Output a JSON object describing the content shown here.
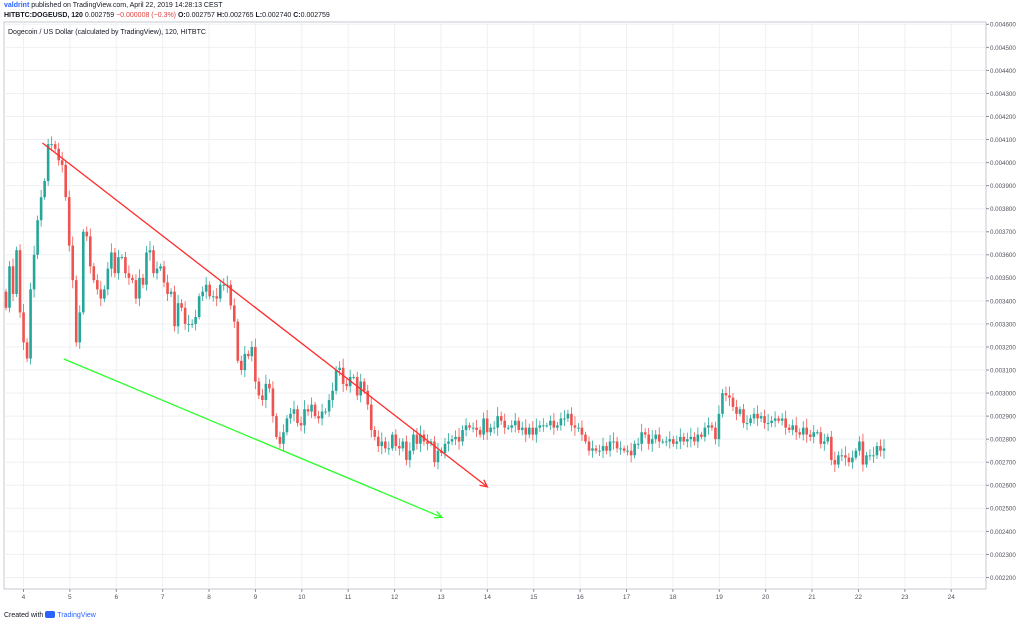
{
  "header": {
    "author": "valdrint",
    "published_text": "published on TradingView.com, April 22, 2019 14:28:13 CEST",
    "symbol": "HITBTC:DOGEUSD, 120",
    "last": "0.002759",
    "change": "−0.000008 (−0.3%)",
    "o_label": "O:",
    "o": "0.002757",
    "h_label": "H:",
    "h": "0.002765",
    "l_label": "L:",
    "l": "0.002740",
    "c_label": "C:",
    "c": "0.002759"
  },
  "footer": {
    "created_with": "Created with",
    "brand": "TradingView"
  },
  "chart_data": {
    "type": "candlestick",
    "title": "Dogecoin / US Dollar (calculated by TradingView), 120, HITBTC",
    "ylim": [
      0.00215,
      0.00461
    ],
    "y_ticks": [
      "0.004600",
      "0.004500",
      "0.004400",
      "0.004300",
      "0.004200",
      "0.004100",
      "0.004000",
      "0.003900",
      "0.003800",
      "0.003700",
      "0.003600",
      "0.003500",
      "0.003400",
      "0.003300",
      "0.003200",
      "0.003100",
      "0.003000",
      "0.002900",
      "0.002800",
      "0.002700",
      "0.002600",
      "0.002500",
      "0.002400",
      "0.002300",
      "0.002200"
    ],
    "x_ticks": [
      "4",
      "5",
      "6",
      "7",
      "8",
      "9",
      "10",
      "11",
      "12",
      "13",
      "14",
      "15",
      "16",
      "17",
      "18",
      "19",
      "20",
      "21",
      "22",
      "23",
      "24"
    ],
    "x_tick_days": [
      4,
      5,
      6,
      7,
      8,
      9,
      10,
      11,
      12,
      13,
      14,
      15,
      16,
      17,
      18,
      19,
      20,
      21,
      22,
      23,
      24
    ],
    "xlim": [
      3.58,
      24.75
    ],
    "colors": {
      "up": "#26a69a",
      "down": "#ef5350",
      "resistance": "#ff2b2b",
      "support": "#2bff2b"
    },
    "trend_lines": [
      {
        "style": "arrow",
        "color": "resistance",
        "x": [
          4.41,
          14.0
        ],
        "y": [
          0.004085,
          0.002593
        ]
      },
      {
        "style": "arrow",
        "color": "support",
        "x": [
          4.87,
          13.02
        ],
        "y": [
          0.003148,
          0.002461
        ]
      }
    ],
    "series": [
      {
        "name": "DOGEUSD",
        "closes": [
          0.00337,
          0.00355,
          0.00343,
          0.00362,
          0.00335,
          0.00322,
          0.00315,
          0.00345,
          0.0036,
          0.00375,
          0.00385,
          0.00392,
          0.00408,
          0.00408,
          0.00406,
          0.00401,
          0.00399,
          0.00385,
          0.00364,
          0.00349,
          0.00322,
          0.00335,
          0.0037,
          0.00368,
          0.00355,
          0.00349,
          0.00345,
          0.00341,
          0.00345,
          0.00354,
          0.00361,
          0.00352,
          0.00359,
          0.00359,
          0.00352,
          0.0035,
          0.00349,
          0.00341,
          0.0035,
          0.00347,
          0.00361,
          0.00362,
          0.00352,
          0.00354,
          0.00355,
          0.00348,
          0.00343,
          0.00344,
          0.00329,
          0.00339,
          0.00337,
          0.0033,
          0.0033,
          0.0033,
          0.00333,
          0.00342,
          0.00344,
          0.00347,
          0.00342,
          0.00342,
          0.00341,
          0.00347,
          0.00347,
          0.00347,
          0.00338,
          0.00331,
          0.00314,
          0.0031,
          0.00317,
          0.00316,
          0.0032,
          0.00305,
          0.00299,
          0.00297,
          0.00304,
          0.00302,
          0.0029,
          0.00281,
          0.00278,
          0.00283,
          0.00289,
          0.00291,
          0.00293,
          0.00287,
          0.00286,
          0.00293,
          0.00292,
          0.00295,
          0.0029,
          0.00289,
          0.00292,
          0.00292,
          0.00297,
          0.00301,
          0.0031,
          0.00311,
          0.00304,
          0.00303,
          0.00307,
          0.00307,
          0.00299,
          0.00305,
          0.00301,
          0.00295,
          0.00284,
          0.00281,
          0.00277,
          0.00279,
          0.00276,
          0.00276,
          0.00282,
          0.00277,
          0.00276,
          0.00279,
          0.00271,
          0.00275,
          0.00282,
          0.00278,
          0.00282,
          0.00279,
          0.00278,
          0.00279,
          0.0027,
          0.00275,
          0.00274,
          0.00278,
          0.00279,
          0.0028,
          0.00281,
          0.00279,
          0.00284,
          0.00286,
          0.00285,
          0.00285,
          0.00284,
          0.00282,
          0.00289,
          0.00283,
          0.00285,
          0.00285,
          0.0029,
          0.00288,
          0.00285,
          0.00285,
          0.00286,
          0.00288,
          0.00284,
          0.00285,
          0.00282,
          0.00285,
          0.00282,
          0.00285,
          0.00286,
          0.00286,
          0.00286,
          0.00288,
          0.00285,
          0.00286,
          0.00289,
          0.00289,
          0.00291,
          0.00286,
          0.00285,
          0.00285,
          0.00282,
          0.00279,
          0.00275,
          0.00276,
          0.00275,
          0.00275,
          0.00277,
          0.00275,
          0.00279,
          0.00279,
          0.00276,
          0.00276,
          0.00275,
          0.00275,
          0.00273,
          0.00278,
          0.00278,
          0.00283,
          0.00282,
          0.00278,
          0.0028,
          0.00282,
          0.00279,
          0.00279,
          0.00279,
          0.0028,
          0.00278,
          0.00279,
          0.00281,
          0.00279,
          0.0028,
          0.00281,
          0.00279,
          0.00282,
          0.00281,
          0.00285,
          0.00286,
          0.00285,
          0.0028,
          0.00291,
          0.003,
          0.00299,
          0.00298,
          0.00294,
          0.00291,
          0.00293,
          0.00287,
          0.00287,
          0.00289,
          0.00291,
          0.00289,
          0.0029,
          0.00287,
          0.00287,
          0.00288,
          0.00289,
          0.00288,
          0.00289,
          0.00285,
          0.00284,
          0.00286,
          0.00283,
          0.00282,
          0.00285,
          0.00282,
          0.00281,
          0.00283,
          0.00283,
          0.00278,
          0.00279,
          0.00281,
          0.00271,
          0.00269,
          0.00273,
          0.00273,
          0.00272,
          0.0027,
          0.00272,
          0.00275,
          0.00279,
          0.00269,
          0.00273,
          0.00273,
          0.00273,
          0.00277,
          0.00275,
          0.00276
        ]
      }
    ],
    "grid": true,
    "legend": "none"
  }
}
